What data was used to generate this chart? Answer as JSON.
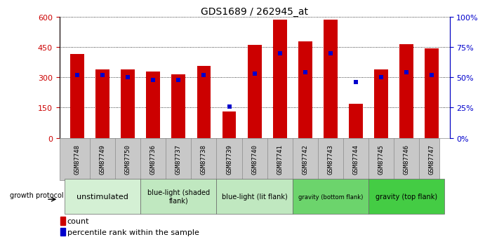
{
  "title": "GDS1689 / 262945_at",
  "samples": [
    "GSM87748",
    "GSM87749",
    "GSM87750",
    "GSM87736",
    "GSM87737",
    "GSM87738",
    "GSM87739",
    "GSM87740",
    "GSM87741",
    "GSM87742",
    "GSM87743",
    "GSM87744",
    "GSM87745",
    "GSM87746",
    "GSM87747"
  ],
  "counts": [
    415,
    340,
    340,
    330,
    315,
    355,
    130,
    460,
    585,
    480,
    585,
    170,
    340,
    465,
    445
  ],
  "percentiles": [
    52,
    52,
    50,
    48,
    48,
    52,
    26,
    53,
    70,
    54,
    70,
    46,
    50,
    54,
    52
  ],
  "ylim_left": [
    0,
    600
  ],
  "ylim_right": [
    0,
    100
  ],
  "yticks_left": [
    0,
    150,
    300,
    450,
    600
  ],
  "yticks_right": [
    0,
    25,
    50,
    75,
    100
  ],
  "groups": [
    {
      "label": "unstimulated",
      "start": 0,
      "end": 3,
      "color": "#d4f0d4",
      "fontsize": 8
    },
    {
      "label": "blue-light (shaded\nflank)",
      "start": 3,
      "end": 6,
      "color": "#c0e8c0",
      "fontsize": 7
    },
    {
      "label": "blue-light (lit flank)",
      "start": 6,
      "end": 9,
      "color": "#c0e8c0",
      "fontsize": 7
    },
    {
      "label": "gravity (bottom flank)",
      "start": 9,
      "end": 12,
      "color": "#6cd46c",
      "fontsize": 6
    },
    {
      "label": "gravity (top flank)",
      "start": 12,
      "end": 15,
      "color": "#44cc44",
      "fontsize": 7
    }
  ],
  "bar_color": "#cc0000",
  "percentile_color": "#0000cc",
  "tick_bg_color": "#c8c8c8",
  "left_axis_color": "#cc0000",
  "right_axis_color": "#0000cc",
  "legend_count_label": "count",
  "legend_pct_label": "percentile rank within the sample",
  "growth_protocol_label": "growth protocol",
  "fig_width": 6.5,
  "fig_height": 3.45
}
